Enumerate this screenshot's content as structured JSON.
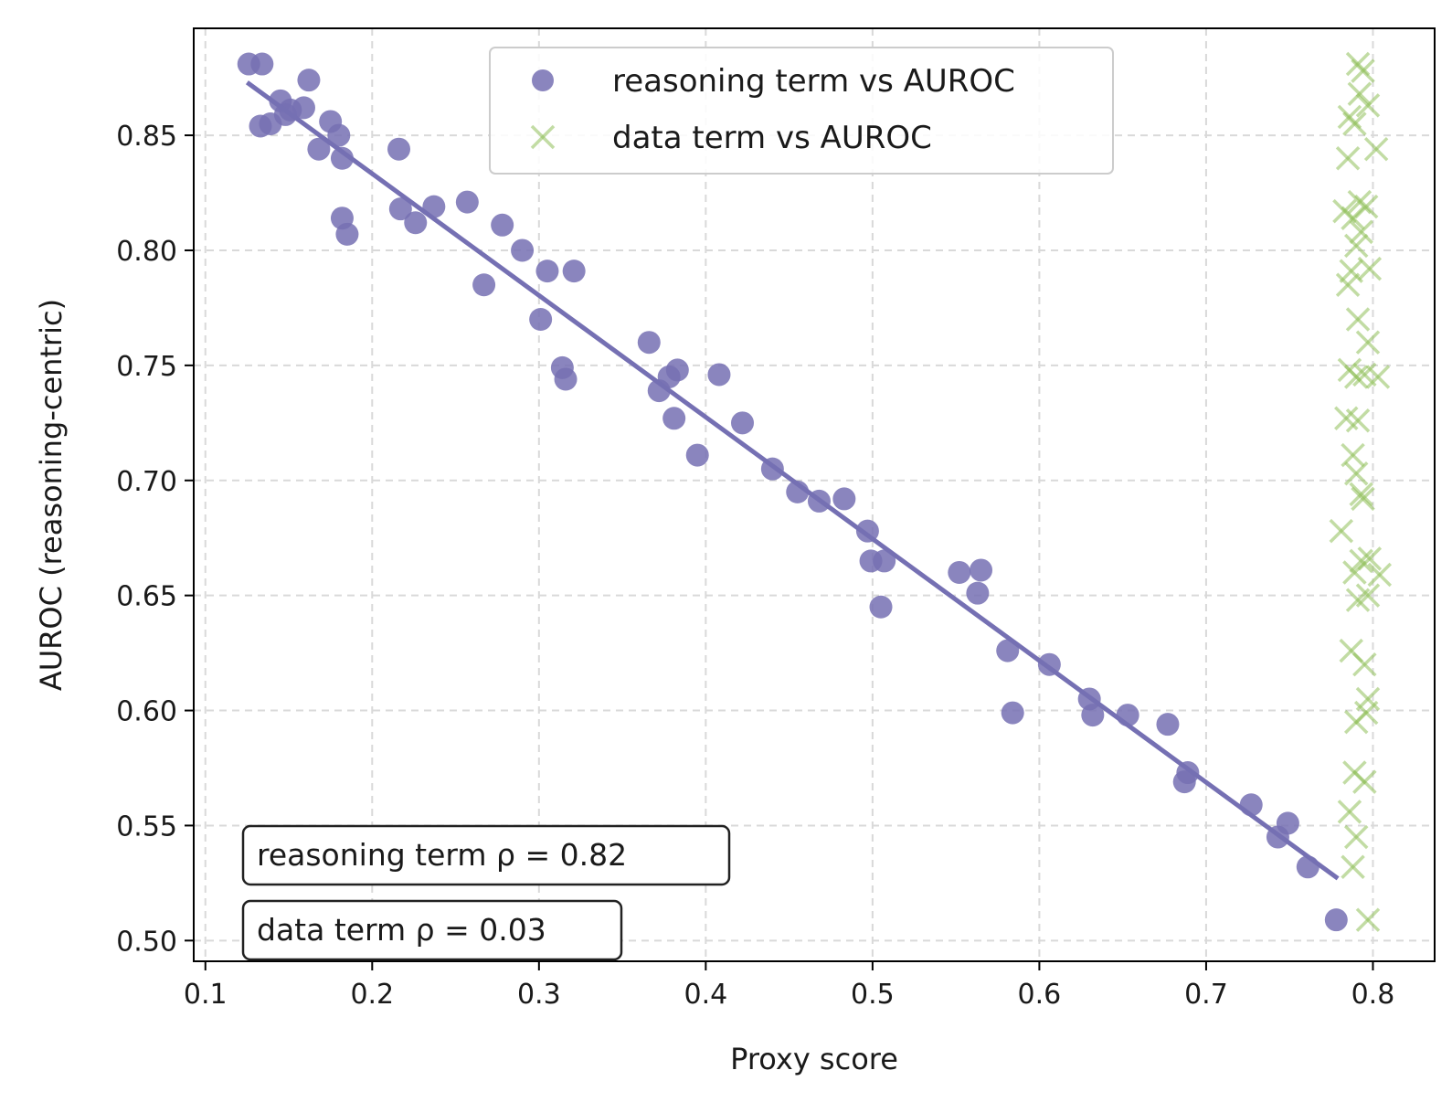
{
  "chart_data": {
    "type": "scatter",
    "xlabel": "Proxy score",
    "ylabel": "AUROC (reasoning-centric)",
    "xlim": [
      0.093,
      0.837
    ],
    "ylim": [
      0.491,
      0.8965
    ],
    "grid": true,
    "legend_position": "top-center",
    "x_ticks": [
      0.1,
      0.2,
      0.3,
      0.4,
      0.5,
      0.6,
      0.7,
      0.8
    ],
    "x_tick_labels": [
      "0.1",
      "0.2",
      "0.3",
      "0.4",
      "0.5",
      "0.6",
      "0.7",
      "0.8"
    ],
    "y_ticks": [
      0.5,
      0.55,
      0.6,
      0.65,
      0.7,
      0.75,
      0.8,
      0.85
    ],
    "y_tick_labels": [
      "0.50",
      "0.55",
      "0.60",
      "0.65",
      "0.70",
      "0.75",
      "0.80",
      "0.85"
    ],
    "colors": {
      "reasoning": "#7570b3",
      "data": "#8fbf5a",
      "fit": "#7570b3"
    },
    "series": [
      {
        "name": "reasoning term vs AUROC",
        "marker": "circle",
        "points": [
          [
            0.126,
            0.881
          ],
          [
            0.134,
            0.881
          ],
          [
            0.133,
            0.854
          ],
          [
            0.139,
            0.855
          ],
          [
            0.145,
            0.865
          ],
          [
            0.148,
            0.859
          ],
          [
            0.151,
            0.861
          ],
          [
            0.159,
            0.862
          ],
          [
            0.162,
            0.874
          ],
          [
            0.168,
            0.844
          ],
          [
            0.175,
            0.856
          ],
          [
            0.18,
            0.85
          ],
          [
            0.182,
            0.84
          ],
          [
            0.182,
            0.814
          ],
          [
            0.185,
            0.807
          ],
          [
            0.216,
            0.844
          ],
          [
            0.217,
            0.818
          ],
          [
            0.226,
            0.812
          ],
          [
            0.237,
            0.819
          ],
          [
            0.257,
            0.821
          ],
          [
            0.267,
            0.785
          ],
          [
            0.278,
            0.811
          ],
          [
            0.29,
            0.8
          ],
          [
            0.301,
            0.77
          ],
          [
            0.305,
            0.791
          ],
          [
            0.314,
            0.749
          ],
          [
            0.316,
            0.744
          ],
          [
            0.321,
            0.791
          ],
          [
            0.366,
            0.76
          ],
          [
            0.372,
            0.739
          ],
          [
            0.378,
            0.745
          ],
          [
            0.381,
            0.727
          ],
          [
            0.383,
            0.748
          ],
          [
            0.395,
            0.711
          ],
          [
            0.408,
            0.746
          ],
          [
            0.422,
            0.725
          ],
          [
            0.44,
            0.705
          ],
          [
            0.455,
            0.695
          ],
          [
            0.468,
            0.691
          ],
          [
            0.483,
            0.692
          ],
          [
            0.497,
            0.678
          ],
          [
            0.499,
            0.665
          ],
          [
            0.507,
            0.665
          ],
          [
            0.505,
            0.645
          ],
          [
            0.552,
            0.66
          ],
          [
            0.563,
            0.651
          ],
          [
            0.565,
            0.661
          ],
          [
            0.581,
            0.626
          ],
          [
            0.584,
            0.599
          ],
          [
            0.606,
            0.62
          ],
          [
            0.63,
            0.605
          ],
          [
            0.632,
            0.598
          ],
          [
            0.653,
            0.598
          ],
          [
            0.677,
            0.594
          ],
          [
            0.687,
            0.569
          ],
          [
            0.689,
            0.573
          ],
          [
            0.727,
            0.559
          ],
          [
            0.743,
            0.545
          ],
          [
            0.749,
            0.551
          ],
          [
            0.761,
            0.532
          ],
          [
            0.778,
            0.509
          ]
        ]
      },
      {
        "name": "data term vs AUROC",
        "marker": "x",
        "points": [
          [
            0.791,
            0.881
          ],
          [
            0.794,
            0.878
          ],
          [
            0.786,
            0.858
          ],
          [
            0.789,
            0.855
          ],
          [
            0.797,
            0.863
          ],
          [
            0.792,
            0.868
          ],
          [
            0.802,
            0.844
          ],
          [
            0.785,
            0.84
          ],
          [
            0.783,
            0.817
          ],
          [
            0.788,
            0.814
          ],
          [
            0.792,
            0.821
          ],
          [
            0.796,
            0.819
          ],
          [
            0.793,
            0.808
          ],
          [
            0.79,
            0.802
          ],
          [
            0.787,
            0.791
          ],
          [
            0.798,
            0.792
          ],
          [
            0.785,
            0.785
          ],
          [
            0.791,
            0.77
          ],
          [
            0.797,
            0.76
          ],
          [
            0.786,
            0.748
          ],
          [
            0.79,
            0.745
          ],
          [
            0.795,
            0.746
          ],
          [
            0.803,
            0.745
          ],
          [
            0.784,
            0.727
          ],
          [
            0.791,
            0.726
          ],
          [
            0.788,
            0.711
          ],
          [
            0.79,
            0.703
          ],
          [
            0.793,
            0.694
          ],
          [
            0.794,
            0.692
          ],
          [
            0.781,
            0.678
          ],
          [
            0.793,
            0.665
          ],
          [
            0.798,
            0.666
          ],
          [
            0.789,
            0.66
          ],
          [
            0.804,
            0.659
          ],
          [
            0.791,
            0.648
          ],
          [
            0.797,
            0.65
          ],
          [
            0.787,
            0.626
          ],
          [
            0.795,
            0.62
          ],
          [
            0.797,
            0.605
          ],
          [
            0.796,
            0.599
          ],
          [
            0.79,
            0.595
          ],
          [
            0.789,
            0.573
          ],
          [
            0.795,
            0.569
          ],
          [
            0.786,
            0.556
          ],
          [
            0.79,
            0.545
          ],
          [
            0.788,
            0.532
          ],
          [
            0.797,
            0.509
          ]
        ]
      }
    ],
    "fit_line": {
      "x": [
        0.125,
        0.779
      ],
      "y": [
        0.873,
        0.527
      ]
    },
    "annotations": [
      "reasoning term ρ = 0.82",
      "data term ρ = 0.03"
    ]
  }
}
